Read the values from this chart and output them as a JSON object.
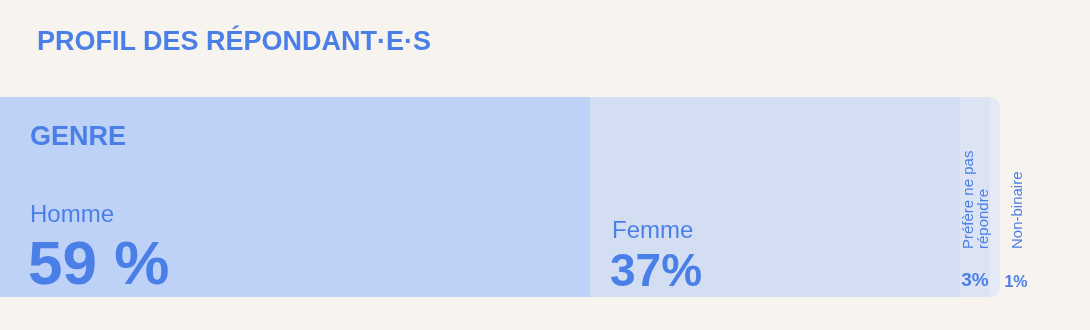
{
  "chart_data": {
    "type": "bar",
    "orientation": "horizontal",
    "stacked": true,
    "title": "PROFIL DES RÉPONDANT·E·S",
    "subtitle": "GENRE",
    "categories": [
      null
    ],
    "xlim": [
      0,
      100
    ],
    "tick_labels": false,
    "grid": false,
    "legend": false,
    "series": [
      {
        "name": "Homme",
        "color": "#bed2f7",
        "values": [
          59
        ],
        "value_labels": [
          "59 %"
        ]
      },
      {
        "name": "Femme",
        "color": "#d4def3",
        "values": [
          37
        ],
        "value_labels": [
          "37%"
        ]
      },
      {
        "name": "Préfère ne pas répondre",
        "color": "#dce4f4",
        "values": [
          3
        ],
        "value_labels": [
          "3%"
        ]
      },
      {
        "name": "Non-binaire",
        "color": "#e4eaf6",
        "values": [
          1
        ],
        "value_labels": [
          "1%"
        ]
      }
    ]
  }
}
